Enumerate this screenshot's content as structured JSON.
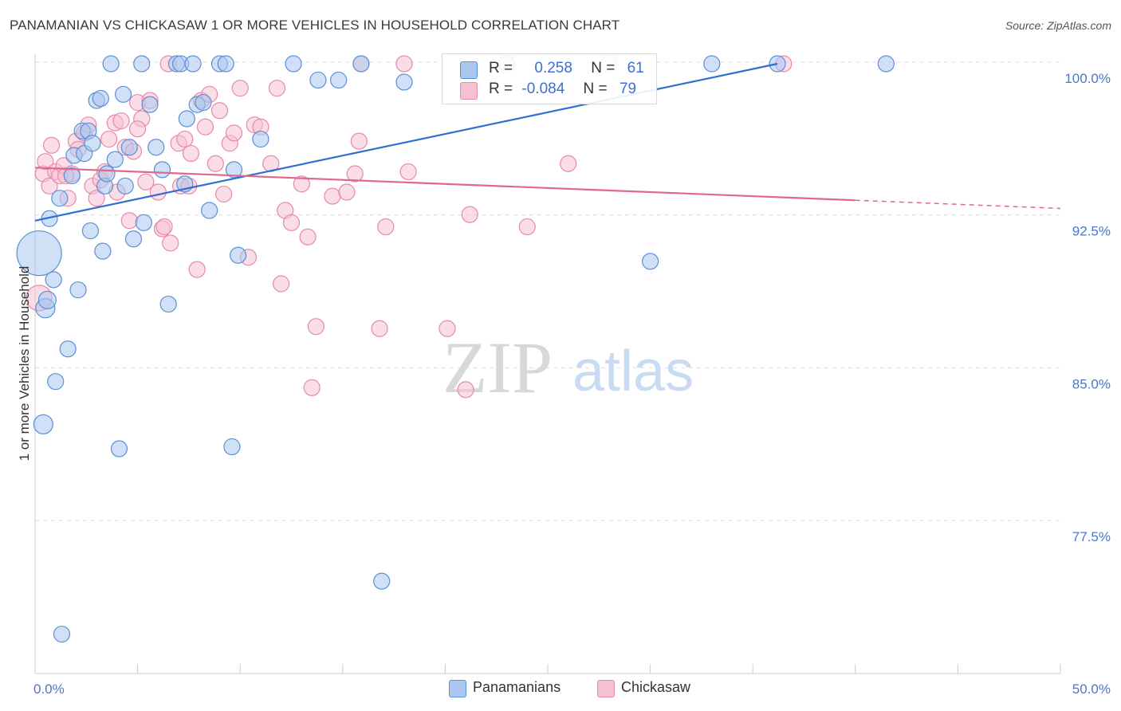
{
  "title": "PANAMANIAN VS CHICKASAW 1 OR MORE VEHICLES IN HOUSEHOLD CORRELATION CHART",
  "source": "Source: ZipAtlas.com",
  "watermark": {
    "zip": "ZIP",
    "atlas": "atlas"
  },
  "legend": {
    "row1": {
      "r_label": "R =",
      "r_value": "0.258",
      "n_label": "N =",
      "n_value": "61"
    },
    "row2": {
      "r_label": "R =",
      "r_value": "-0.084",
      "n_label": "N =",
      "n_value": "79"
    }
  },
  "colors": {
    "blue_fill": "#aac7ef",
    "blue_stroke": "#5b8fd6",
    "blue_line": "#2f6fd0",
    "pink_fill": "#f5c1d2",
    "pink_stroke": "#e58aa8",
    "pink_line": "#e0688f",
    "grid": "#dddddd",
    "tick_text": "#4a77c9"
  },
  "chart_data": {
    "type": "scatter",
    "title": "PANAMANIAN VS CHICKASAW 1 OR MORE VEHICLES IN HOUSEHOLD CORRELATION CHART",
    "xlabel": "",
    "ylabel": "1 or more Vehicles in Household",
    "xlim": [
      0,
      50
    ],
    "ylim": [
      70,
      101
    ],
    "x_tick_labels": [
      "0.0%",
      "50.0%"
    ],
    "y_ticks": [
      77.5,
      85.0,
      92.5,
      100.0
    ],
    "y_tick_labels": [
      "77.5%",
      "85.0%",
      "92.5%",
      "100.0%"
    ],
    "grid": "horizontal dashed",
    "legend_position": "bottom",
    "series": [
      {
        "name": "Panamanians",
        "r": 0.258,
        "n": 61,
        "trend": {
          "x0": 0,
          "y0": 92.3,
          "x1": 36.2,
          "y1": 100.0
        },
        "points": [
          [
            0.2,
            90.7,
            28
          ],
          [
            0.5,
            88.0,
            12
          ],
          [
            0.6,
            88.4,
            11
          ],
          [
            0.7,
            92.4,
            10
          ],
          [
            0.9,
            89.4,
            10
          ],
          [
            1.0,
            84.4,
            10
          ],
          [
            1.2,
            93.4,
            10
          ],
          [
            0.4,
            82.3,
            12
          ],
          [
            1.3,
            72.0,
            10
          ],
          [
            1.6,
            86.0,
            10
          ],
          [
            1.8,
            94.5,
            10
          ],
          [
            1.9,
            95.5,
            10
          ],
          [
            2.1,
            88.9,
            10
          ],
          [
            2.3,
            96.7,
            10
          ],
          [
            2.4,
            95.6,
            10
          ],
          [
            2.6,
            96.7,
            10
          ],
          [
            2.7,
            91.8,
            10
          ],
          [
            2.8,
            96.1,
            10
          ],
          [
            3.0,
            98.2,
            10
          ],
          [
            3.2,
            98.3,
            10
          ],
          [
            3.3,
            90.8,
            10
          ],
          [
            3.4,
            94.0,
            10
          ],
          [
            3.5,
            94.6,
            10
          ],
          [
            3.7,
            100.0,
            10
          ],
          [
            3.9,
            95.3,
            10
          ],
          [
            4.1,
            81.1,
            10
          ],
          [
            4.3,
            98.5,
            10
          ],
          [
            4.4,
            94.0,
            10
          ],
          [
            4.6,
            95.9,
            10
          ],
          [
            4.8,
            91.4,
            10
          ],
          [
            5.2,
            100.0,
            10
          ],
          [
            5.3,
            92.2,
            10
          ],
          [
            5.6,
            98.0,
            10
          ],
          [
            5.9,
            95.9,
            10
          ],
          [
            6.2,
            94.8,
            10
          ],
          [
            6.5,
            88.2,
            10
          ],
          [
            6.9,
            100.0,
            10
          ],
          [
            7.1,
            100.0,
            10
          ],
          [
            7.3,
            94.1,
            10
          ],
          [
            7.4,
            97.3,
            10
          ],
          [
            7.7,
            100.0,
            10
          ],
          [
            7.9,
            98.0,
            10
          ],
          [
            8.2,
            98.1,
            10
          ],
          [
            8.5,
            92.8,
            10
          ],
          [
            9.0,
            100.0,
            10
          ],
          [
            9.3,
            100.0,
            10
          ],
          [
            9.6,
            81.2,
            10
          ],
          [
            9.7,
            94.8,
            10
          ],
          [
            9.9,
            90.6,
            10
          ],
          [
            11.0,
            96.3,
            10
          ],
          [
            12.6,
            100.0,
            10
          ],
          [
            13.8,
            99.2,
            10
          ],
          [
            14.8,
            99.2,
            10
          ],
          [
            15.9,
            100.0,
            10
          ],
          [
            16.9,
            74.6,
            10
          ],
          [
            18.0,
            99.1,
            10
          ],
          [
            23.0,
            100.0,
            10
          ],
          [
            30.0,
            90.3,
            10
          ],
          [
            33.0,
            100.0,
            10
          ],
          [
            36.2,
            100.0,
            10
          ],
          [
            41.5,
            100.0,
            10
          ]
        ]
      },
      {
        "name": "Chickasaw",
        "r": -0.084,
        "n": 79,
        "trend": {
          "x0": 0,
          "y0": 94.9,
          "x1": 40.0,
          "y1": 93.3,
          "dash_to_x": 50.0,
          "dash_to_y": 92.9
        },
        "points": [
          [
            0.2,
            88.5,
            16
          ],
          [
            0.4,
            94.6,
            10
          ],
          [
            0.5,
            95.2,
            10
          ],
          [
            0.7,
            94.0,
            10
          ],
          [
            0.8,
            96.0,
            10
          ],
          [
            1.0,
            94.7,
            10
          ],
          [
            1.2,
            94.5,
            10
          ],
          [
            1.4,
            95.0,
            10
          ],
          [
            1.6,
            93.4,
            10
          ],
          [
            1.8,
            94.6,
            10
          ],
          [
            2.0,
            96.2,
            10
          ],
          [
            2.1,
            95.8,
            10
          ],
          [
            2.4,
            96.6,
            10
          ],
          [
            2.6,
            97.0,
            10
          ],
          [
            2.8,
            94.0,
            10
          ],
          [
            3.0,
            93.4,
            10
          ],
          [
            3.2,
            94.3,
            10
          ],
          [
            3.4,
            94.7,
            10
          ],
          [
            3.6,
            96.3,
            10
          ],
          [
            3.9,
            97.1,
            10
          ],
          [
            4.0,
            93.7,
            10
          ],
          [
            4.2,
            97.2,
            10
          ],
          [
            4.4,
            95.9,
            10
          ],
          [
            4.6,
            92.3,
            10
          ],
          [
            4.8,
            95.7,
            10
          ],
          [
            5.0,
            98.1,
            10
          ],
          [
            5.2,
            97.3,
            10
          ],
          [
            5.4,
            94.2,
            10
          ],
          [
            5.6,
            98.2,
            10
          ],
          [
            6.0,
            93.7,
            10
          ],
          [
            6.2,
            91.9,
            10
          ],
          [
            6.3,
            92.0,
            10
          ],
          [
            6.5,
            100.0,
            10
          ],
          [
            6.6,
            91.2,
            10
          ],
          [
            7.0,
            96.1,
            10
          ],
          [
            7.1,
            94.0,
            10
          ],
          [
            7.3,
            96.3,
            10
          ],
          [
            7.5,
            94.0,
            10
          ],
          [
            7.6,
            95.6,
            10
          ],
          [
            7.9,
            89.9,
            10
          ],
          [
            8.1,
            98.2,
            10
          ],
          [
            8.3,
            96.9,
            10
          ],
          [
            8.5,
            98.5,
            10
          ],
          [
            8.8,
            95.1,
            10
          ],
          [
            9.0,
            97.7,
            10
          ],
          [
            9.2,
            93.6,
            10
          ],
          [
            9.5,
            96.1,
            10
          ],
          [
            9.7,
            96.6,
            10
          ],
          [
            10.0,
            98.8,
            10
          ],
          [
            10.4,
            90.5,
            10
          ],
          [
            10.7,
            97.0,
            10
          ],
          [
            11.0,
            96.9,
            10
          ],
          [
            11.5,
            95.1,
            10
          ],
          [
            11.8,
            98.8,
            10
          ],
          [
            12.0,
            89.2,
            10
          ],
          [
            12.2,
            92.8,
            10
          ],
          [
            12.5,
            92.2,
            10
          ],
          [
            13.0,
            94.1,
            10
          ],
          [
            13.3,
            91.5,
            10
          ],
          [
            13.5,
            84.1,
            10
          ],
          [
            13.7,
            87.1,
            10
          ],
          [
            14.5,
            93.5,
            10
          ],
          [
            15.2,
            93.7,
            10
          ],
          [
            15.6,
            94.6,
            10
          ],
          [
            15.8,
            96.2,
            10
          ],
          [
            15.9,
            100.0,
            10
          ],
          [
            16.8,
            87.0,
            10
          ],
          [
            17.1,
            92.0,
            10
          ],
          [
            18.2,
            94.7,
            10
          ],
          [
            18.0,
            100.0,
            10
          ],
          [
            20.1,
            87.0,
            10
          ],
          [
            21.0,
            84.0,
            10
          ],
          [
            21.2,
            92.6,
            10
          ],
          [
            24.0,
            92.0,
            10
          ],
          [
            26.0,
            95.1,
            10
          ],
          [
            28.0,
            100.0,
            10
          ],
          [
            36.5,
            100.0,
            10
          ],
          [
            1.5,
            94.5,
            10
          ],
          [
            5.0,
            96.8,
            10
          ]
        ]
      }
    ]
  }
}
